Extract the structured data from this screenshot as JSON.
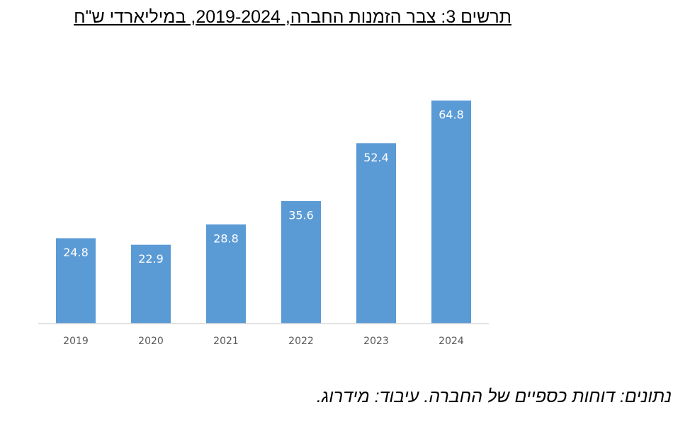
{
  "chart_data": {
    "type": "bar",
    "title": "תרשים 3: צבר הזמנות החברה, 2019-2024, במיליארדי ש\"ח",
    "source": "נתונים: דוחות כספיים של החברה. עיבוד: מידרוג.",
    "categories": [
      "2019",
      "2020",
      "2021",
      "2022",
      "2023",
      "2024"
    ],
    "values": [
      24.8,
      22.9,
      28.8,
      35.6,
      52.4,
      64.8
    ],
    "color": "#5b9bd5",
    "ylim": [
      0,
      65
    ]
  }
}
